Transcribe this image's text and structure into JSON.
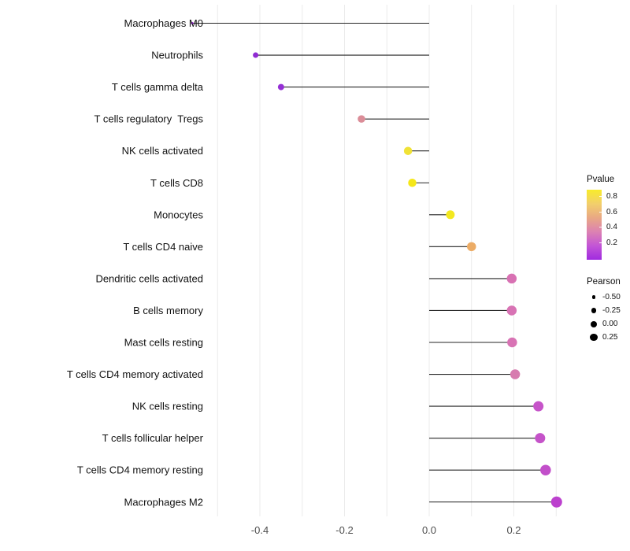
{
  "chart_data": {
    "type": "lollipop",
    "title": "",
    "xlabel": "",
    "ylabel": "",
    "x_axis": {
      "tick_labels": [
        "-0.4",
        "-0.2",
        "0.0",
        "0.2"
      ],
      "tick_values": [
        -0.4,
        -0.2,
        0.0,
        0.2
      ],
      "grid_min": -0.5,
      "grid_max": 0.3,
      "grid_step": 0.1,
      "range": [
        -0.52,
        0.355
      ]
    },
    "points": [
      {
        "label": "Macrophages M0",
        "pearson": -0.56,
        "pvalue_approx": 0.07,
        "color": "#9B2AD6",
        "size": 3.2
      },
      {
        "label": "Neutrophils",
        "pearson": -0.41,
        "pvalue_approx": 0.06,
        "color": "#8F2BD2",
        "size": 7
      },
      {
        "label": "T cells gamma delta",
        "pearson": -0.35,
        "pvalue_approx": 0.08,
        "color": "#9530D5",
        "size": 8
      },
      {
        "label": "T cells regulatory  Tregs",
        "pearson": -0.16,
        "pvalue_approx": 0.45,
        "color": "#DB8D98",
        "size": 9.5
      },
      {
        "label": "NK cells activated",
        "pearson": -0.05,
        "pvalue_approx": 0.75,
        "color": "#F0E236",
        "size": 10.5
      },
      {
        "label": "T cells CD8",
        "pearson": -0.04,
        "pvalue_approx": 0.82,
        "color": "#F5E718",
        "size": 10.5
      },
      {
        "label": "Monocytes",
        "pearson": 0.05,
        "pvalue_approx": 0.8,
        "color": "#F3E81F",
        "size": 11
      },
      {
        "label": "T cells CD4 naive",
        "pearson": 0.1,
        "pvalue_approx": 0.6,
        "color": "#ECAC66",
        "size": 11.5
      },
      {
        "label": "Dendritic cells activated",
        "pearson": 0.195,
        "pvalue_approx": 0.3,
        "color": "#D871B3",
        "size": 12.5
      },
      {
        "label": "B cells memory",
        "pearson": 0.195,
        "pvalue_approx": 0.3,
        "color": "#D873B4",
        "size": 12.5
      },
      {
        "label": "Mast cells resting",
        "pearson": 0.196,
        "pvalue_approx": 0.3,
        "color": "#D873B4",
        "size": 12.5
      },
      {
        "label": "T cells CD4 memory activated",
        "pearson": 0.203,
        "pvalue_approx": 0.32,
        "color": "#D77BAF",
        "size": 12.5
      },
      {
        "label": "NK cells resting",
        "pearson": 0.258,
        "pvalue_approx": 0.2,
        "color": "#C654C9",
        "size": 13
      },
      {
        "label": "T cells follicular helper",
        "pearson": 0.262,
        "pvalue_approx": 0.2,
        "color": "#C553C9",
        "size": 13
      },
      {
        "label": "T cells CD4 memory resting",
        "pearson": 0.275,
        "pvalue_approx": 0.18,
        "color": "#C24FCA",
        "size": 13.5
      },
      {
        "label": "Macrophages M2",
        "pearson": 0.301,
        "pvalue_approx": 0.13,
        "color": "#BC41CE",
        "size": 14
      }
    ],
    "legend": {
      "pvalue": {
        "title": "Pvalue",
        "tick_labels": [
          "0.8",
          "0.6",
          "0.4",
          "0.2"
        ],
        "gradient": [
          "#F8EC2B",
          "#F2CF6B",
          "#E9A884",
          "#DC82B2",
          "#C355D6",
          "#A02BDF"
        ]
      },
      "pearson": {
        "title": "Pearson",
        "items": [
          {
            "label": "-0.50",
            "size": 4.5
          },
          {
            "label": "-0.25",
            "size": 6.5
          },
          {
            "label": "0.00",
            "size": 8
          },
          {
            "label": "0.25",
            "size": 9.5
          }
        ]
      }
    },
    "colors": {
      "stem": "#262626",
      "grid": "#EBEBEB",
      "axis_text": "#4D4D4D",
      "label_text": "#111111"
    }
  }
}
